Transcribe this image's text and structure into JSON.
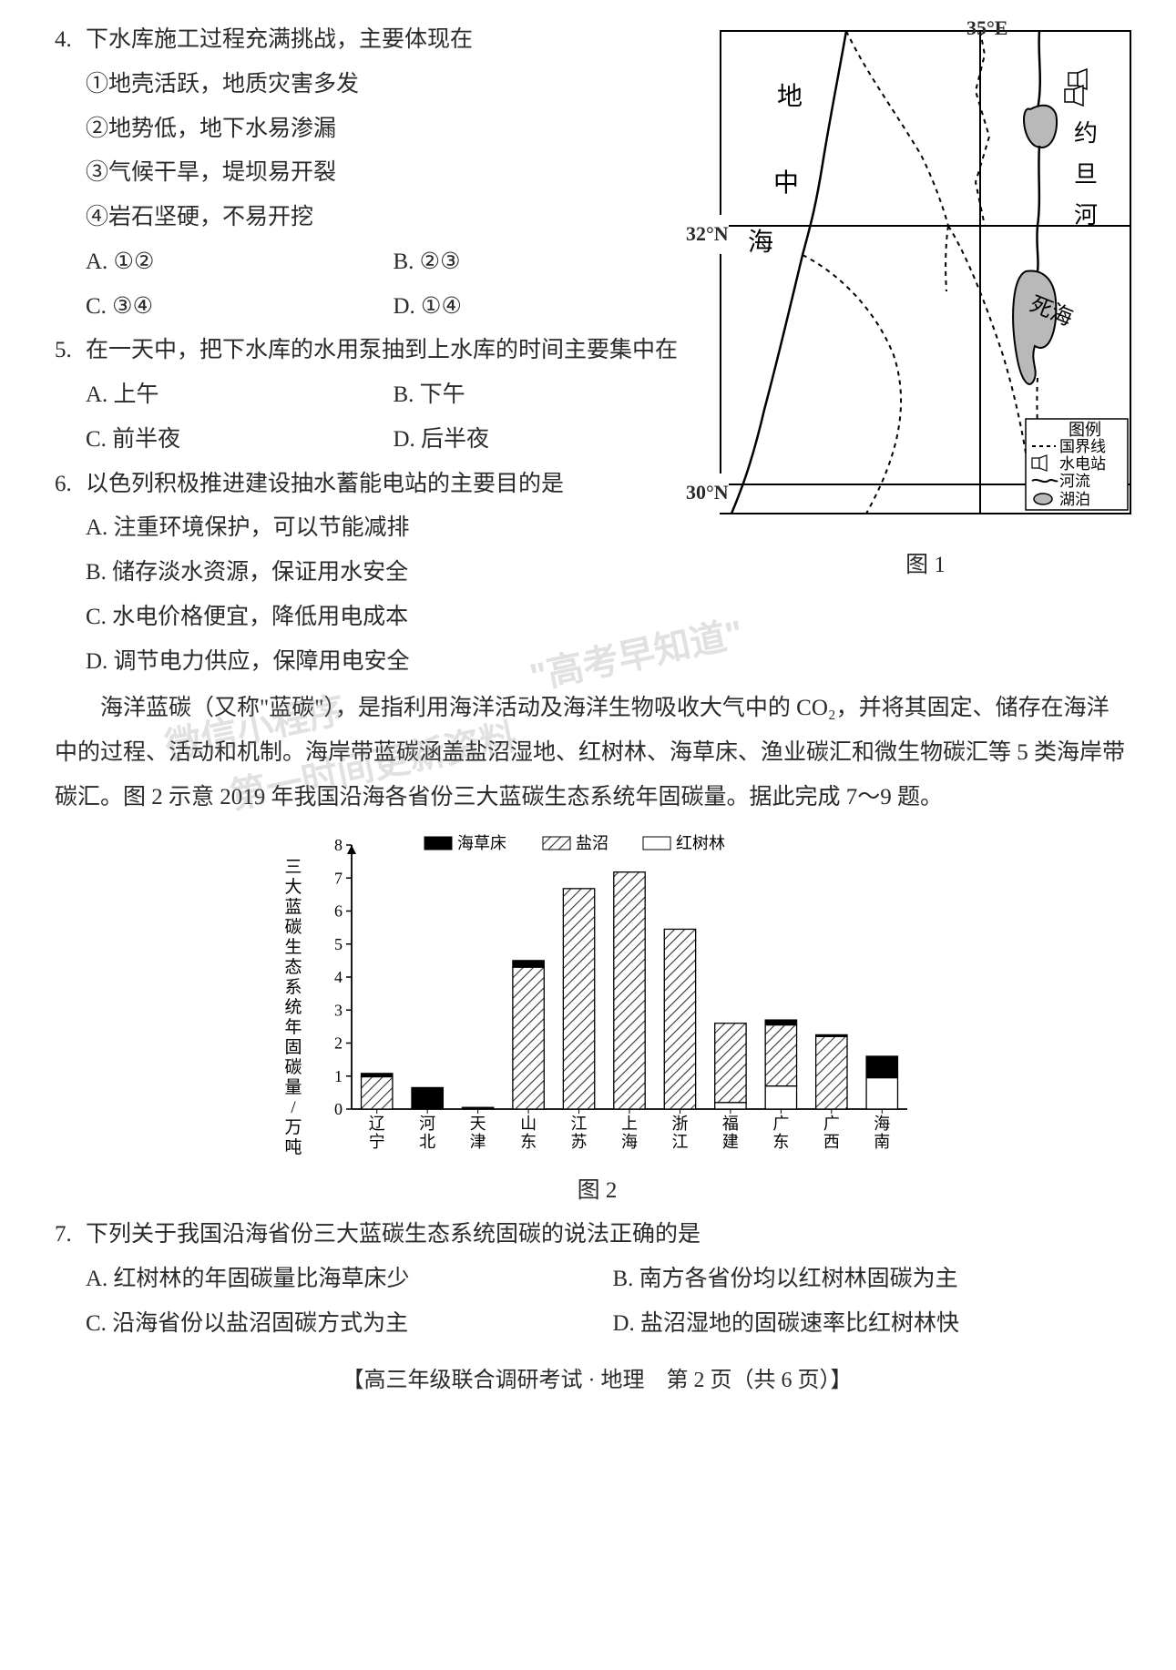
{
  "q4": {
    "num": "4.",
    "stem": "下水库施工过程充满挑战，主要体现在",
    "subs": [
      "①地壳活跃，地质灾害多发",
      "②地势低，地下水易渗漏",
      "③气候干旱，堤坝易开裂",
      "④岩石坚硬，不易开挖"
    ],
    "opts": {
      "A": "A. ①②",
      "B": "B. ②③",
      "C": "C. ③④",
      "D": "D. ①④"
    }
  },
  "q5": {
    "num": "5.",
    "stem": "在一天中，把下水库的水用泵抽到上水库的时间主要集中在",
    "opts": {
      "A": "A. 上午",
      "B": "B. 下午",
      "C": "C. 前半夜",
      "D": "D. 后半夜"
    }
  },
  "q6": {
    "num": "6.",
    "stem": "以色列积极推进建设抽水蓄能电站的主要目的是",
    "opts": {
      "A": "A. 注重环境保护，可以节能减排",
      "B": "B. 储存淡水资源，保证用水安全",
      "C": "C. 水电价格便宜，降低用电成本",
      "D": "D. 调节电力供应，保障用电安全"
    }
  },
  "map": {
    "top_label": "35°E",
    "lat32": "32°N",
    "lat30": "30°N",
    "sea_chars": [
      "地",
      "中",
      "海"
    ],
    "river_chars": [
      "约",
      "旦",
      "河"
    ],
    "dead_sea": "死海",
    "legend_title": "图例",
    "legend": {
      "border": "国界线",
      "station": "水电站",
      "river": "河流",
      "lake": "湖泊"
    },
    "caption": "图 1",
    "colors": {
      "stroke": "#000000",
      "water": "#b9b9b9",
      "bg": "#ffffff"
    }
  },
  "passage": {
    "p1": "海洋蓝碳（又称\"蓝碳\"），是指利用海洋活动及海洋生物吸收大气中的 CO₂，并将其固定、储存在海洋中的过程、活动和机制。海岸带蓝碳涵盖盐沼湿地、红树林、海草床、渔业碳汇和微生物碳汇等 5 类海岸带碳汇。图 2 示意 2019 年我国沿海各省份三大蓝碳生态系统年固碳量。据此完成 7～9 题。"
  },
  "chart": {
    "type": "stacked-bar",
    "y_label": "三大蓝碳生态系统年固碳量/万吨",
    "legend": {
      "seagrass": "海草床",
      "salt_marsh": "盐沼",
      "mangrove": "红树林"
    },
    "categories": [
      "辽宁",
      "河北",
      "天津",
      "山东",
      "江苏",
      "上海",
      "浙江",
      "福建",
      "广东",
      "广西",
      "海南"
    ],
    "series": {
      "seagrass": [
        0.1,
        0.65,
        0.05,
        0.2,
        0.0,
        0.0,
        0.0,
        0.0,
        0.15,
        0.05,
        0.65
      ],
      "salt_marsh": [
        0.98,
        0.0,
        0.0,
        4.3,
        6.68,
        7.18,
        5.45,
        2.4,
        1.85,
        2.2,
        0.0
      ],
      "mangrove": [
        0.0,
        0.0,
        0.0,
        0.0,
        0.0,
        0.0,
        0.0,
        0.2,
        0.7,
        0.0,
        0.95
      ]
    },
    "colors": {
      "seagrass": "#000000",
      "salt_marsh_hatch": "#323232",
      "mangrove": "#ffffff",
      "axis": "#000000",
      "bg": "#ffffff"
    },
    "ylim": [
      0,
      8
    ],
    "ytick_step": 1,
    "bar_width_ratio": 0.62,
    "font_size_axis": 18,
    "caption": "图 2"
  },
  "q7": {
    "num": "7.",
    "stem": "下列关于我国沿海省份三大蓝碳生态系统固碳的说法正确的是",
    "opts": {
      "A": "A. 红树林的年固碳量比海草床少",
      "B": "B. 南方各省份均以红树林固碳为主",
      "C": "C. 沿海省份以盐沼固碳方式为主",
      "D": "D. 盐沼湿地的固碳速率比红树林快"
    }
  },
  "footer": "【高三年级联合调研考试 · 地理　第 2 页（共 6 页）】",
  "watermarks": {
    "w1": "\"高考早知道\"",
    "w2_a": "微信小程序",
    "w2_b": "第一时间更新资料"
  }
}
